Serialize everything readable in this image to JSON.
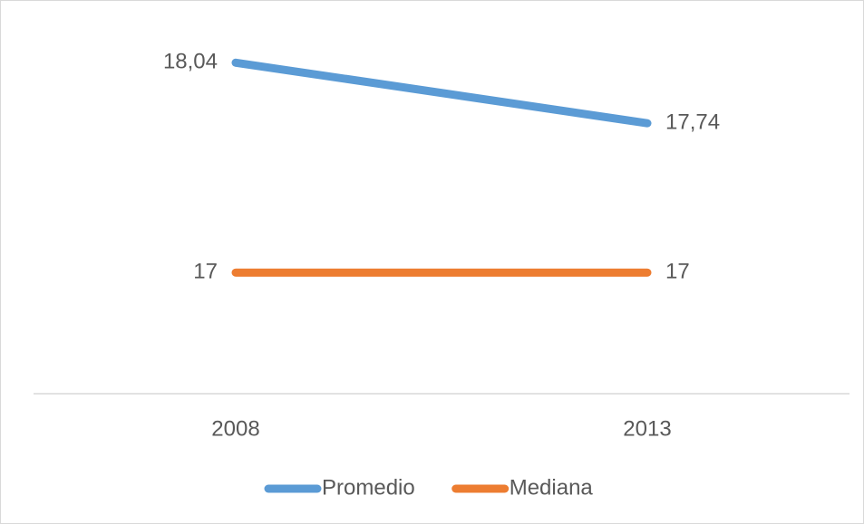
{
  "chart_data": {
    "type": "line",
    "categories": [
      "2008",
      "2013"
    ],
    "series": [
      {
        "name": "Promedio",
        "color": "#5b9bd5",
        "values": [
          18.04,
          17.74
        ],
        "value_labels": [
          "18,04",
          "17,74"
        ]
      },
      {
        "name": "Mediana",
        "color": "#ed7d31",
        "values": [
          17,
          17
        ],
        "value_labels": [
          "17",
          "17"
        ]
      }
    ],
    "ylim": [
      16.4,
      18.2
    ],
    "legend": "bottom"
  }
}
